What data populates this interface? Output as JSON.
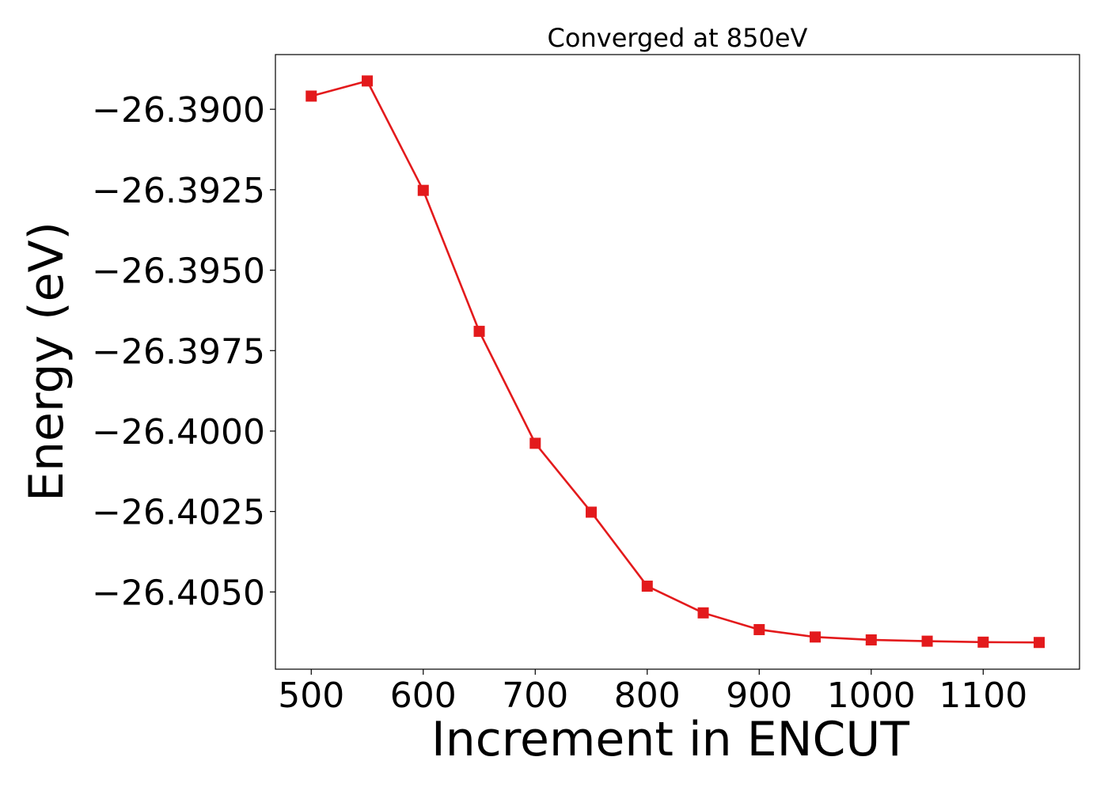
{
  "chart_data": {
    "type": "line",
    "title": "Converged at 850eV",
    "xlabel": "Increment in ENCUT",
    "ylabel": "Energy (eV)",
    "x": [
      500,
      550,
      600,
      650,
      700,
      750,
      800,
      850,
      900,
      950,
      1000,
      1050,
      1100,
      1150
    ],
    "series": [
      {
        "values": [
          -26.38959,
          -26.38912,
          -26.39252,
          -26.3969,
          -26.40038,
          -26.40252,
          -26.40482,
          -26.40565,
          -26.40617,
          -26.4064,
          -26.40649,
          -26.40653,
          -26.40656,
          -26.40657
        ]
      }
    ],
    "xlim": [
      468,
      1186
    ],
    "ylim": [
      -26.4074,
      -26.3883
    ],
    "xticks": [
      500,
      600,
      700,
      800,
      900,
      1000,
      1100
    ],
    "xtick_labels": [
      "500",
      "600",
      "700",
      "800",
      "900",
      "1000",
      "1100"
    ],
    "yticks": [
      -26.39,
      -26.3925,
      -26.395,
      -26.3975,
      -26.4,
      -26.4025,
      -26.405
    ],
    "ytick_labels": [
      "−26.3900",
      "−26.3925",
      "−26.3950",
      "−26.3975",
      "−26.4000",
      "−26.4025",
      "−26.4050"
    ],
    "line_color": "#e31a1c",
    "marker": "square",
    "grid": false,
    "legend": false
  }
}
